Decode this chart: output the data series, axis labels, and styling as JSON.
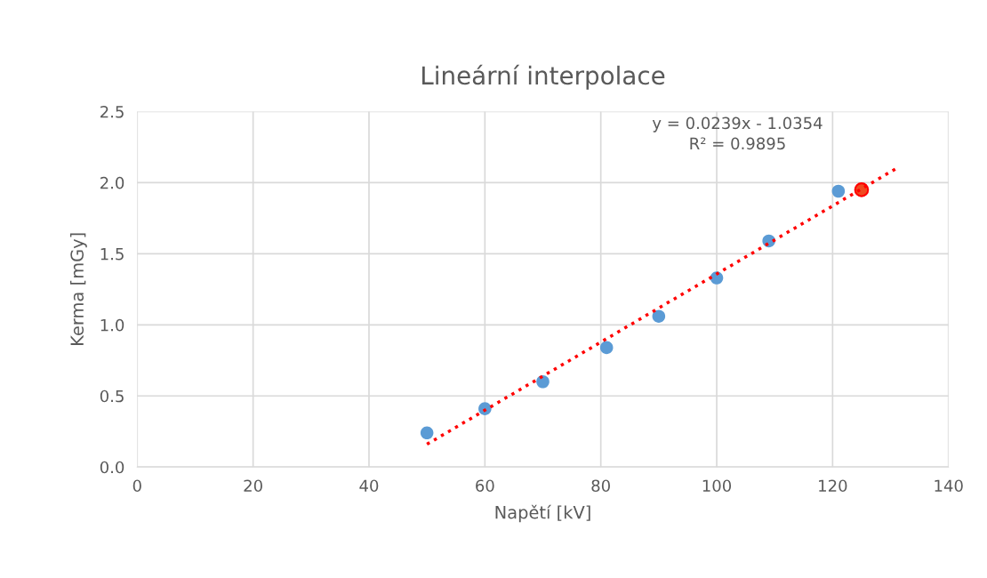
{
  "chart_data": {
    "type": "scatter",
    "title": "Lineární interpolace",
    "xlabel": "Napětí [kV]",
    "ylabel": "Kerma [mGy]",
    "xlim": [
      0,
      140
    ],
    "xticks": [
      0,
      20,
      40,
      60,
      80,
      100,
      120,
      140
    ],
    "ylim": [
      0,
      2.5
    ],
    "yticks": [
      {
        "value": 0,
        "label": "0.0"
      },
      {
        "value": 0.5,
        "label": "0.5"
      },
      {
        "value": 1,
        "label": "1.0"
      },
      {
        "value": 1.5,
        "label": "1.5"
      },
      {
        "value": 2,
        "label": "2.0"
      },
      {
        "value": 2.5,
        "label": "2.5"
      }
    ],
    "grid": true,
    "marker": "circle",
    "series": [
      {
        "color": "#5b9bd5",
        "x": [
          50,
          60,
          70,
          81,
          90,
          100,
          109,
          121
        ],
        "values": [
          0.24,
          0.41,
          0.6,
          0.84,
          1.06,
          1.33,
          1.59,
          1.94
        ]
      },
      {
        "type": "line",
        "color": "#ff0000",
        "line_style": "dotted",
        "marker": "none",
        "x": [
          50,
          131
        ],
        "values": [
          0.16,
          2.1
        ]
      },
      {
        "color": "#f04a20",
        "x": [
          125
        ],
        "values": [
          1.95
        ]
      }
    ],
    "annotations": [
      "y = 0.0239x - 1.0354\nR² = 0.9895"
    ]
  }
}
